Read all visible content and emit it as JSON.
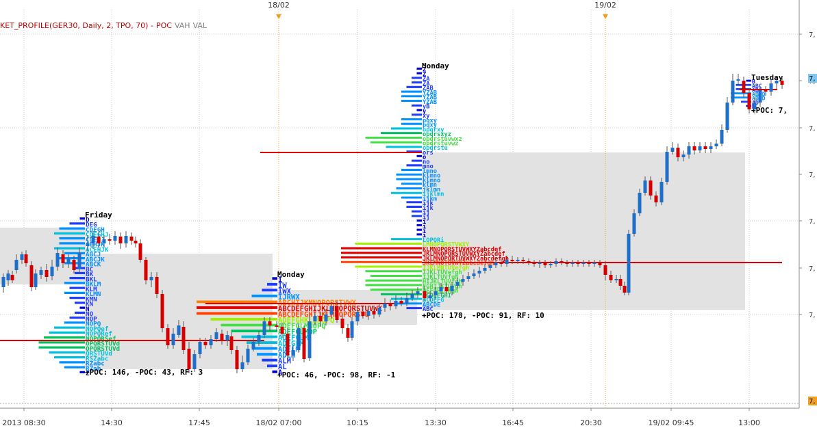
{
  "indicator": {
    "name": "KET_PROFILE(GER30, Daily, 2, TPO, 70) -",
    "poc": "POC",
    "vah": "VAH",
    "val": "VAL"
  },
  "top_markers": [
    "18/02",
    "19/02"
  ],
  "chart_data": {
    "type": "candlestick",
    "symbol": "GER30",
    "x_tick_labels": [
      "2013 08:30",
      "14:30",
      "17:45",
      "18/02 07:00",
      "10:15",
      "13:30",
      "16:45",
      "20:30",
      "19/02 09:45",
      "13:00"
    ],
    "y_tick_labels": [
      "7,",
      "7,",
      "7,",
      "7,",
      "7,",
      "7,",
      "7,"
    ],
    "y_current_label": "7,",
    "y_bottom_label": "7,",
    "colors": {
      "up": "#1f6fc8",
      "down": "#d40000",
      "value_area": "#e2e2e2",
      "poc_line": "#e00000",
      "grid": "#c8c8c8"
    },
    "profiles": [
      {
        "day": "Friday",
        "stats": "+POC: 146, -POC: 43, RF: 3",
        "letters": [
          "D",
          "DEG",
          "CDEGH",
          "CDEGHJ",
          "CDEHJ",
          "CEHJK",
          "ACEHJK",
          "ABCJ",
          "ABCJK",
          "ABCK",
          "BC",
          "BK",
          "BKL",
          "BKLM",
          "KLM",
          "KLMN",
          "KMN",
          "KN",
          "N",
          "NO",
          "NOP",
          "NOPQ",
          "NOPQef",
          "NOPQRef",
          "NOPQRSef",
          "OPQRSTUVd",
          "OPQRSTUVd",
          "QRSTUVd",
          "RSZabc",
          "RZabc",
          "RZab",
          "Z"
        ]
      },
      {
        "day": "Monday",
        "stats": "+POC: 46, -POC: 98, RF: -1",
        "letters": [
          "I",
          "IW",
          "IWX",
          "IJRWX",
          "ABCHIJKMNOPQRSTVWX",
          "ABCDEFGHIJKLMNOPQRSTUVWX",
          "ABCDEFGHIJKLMNOPQRSTU",
          "ADEFGHKLMNOPQ",
          "ADEFGLMNOPQ",
          "ADEFGLMOP",
          "ADEFGLM",
          "ADEGLM",
          "ADELM",
          "ADLM",
          "ALM",
          "AL",
          "A"
        ]
      },
      {
        "day": "Monday",
        "stats": "+POC: 178, -POC: 91, RF: 10",
        "letters": [
          "Z",
          "Z",
          "ZA",
          "ZA",
          "ZAB",
          "YZAB",
          "YZAB",
          "YZAB",
          "yB",
          "y",
          "xy",
          "pqxy",
          "pqxy",
          "opqrxy",
          "opqrsxyz",
          "opqrstuvwxz",
          "opqrstuvwz",
          "opqrstu",
          "ors",
          "o",
          "no",
          "mno",
          "lmno",
          "klmno",
          "klmno",
          "klmn",
          "jklmn",
          "ijklmn",
          "ijkm",
          "ijk",
          "ijk",
          "ij",
          "ij",
          "i",
          "i",
          "i",
          "i",
          "LOPQRi",
          "LMNOPQRSTVWXY",
          "KLMNOPQRSTUVWXYZabcdef",
          "JKLMNOPQRSTUVWXYZabcdef",
          "JKLMNOPQRTUVWXYZabcdefgh",
          "JKLMNOTUVWYZabcdefgh",
          "IJKLMNTUVefgh",
          "IJKLTUVefgh",
          "IJKLTUVfgh",
          "HIJKLTUVfgh",
          "FGHIJKTUVgh",
          "DEFGHIJKgh",
          "BCDEFGHI",
          "BCDEFG",
          "ABCDE",
          "ABC"
        ]
      },
      {
        "day": "Tuesday",
        "stats": "+POC: 7,",
        "letters": [
          "B",
          "ABC",
          "ABC",
          "ABCD",
          "ABCD",
          "AD",
          "D"
        ]
      }
    ]
  }
}
